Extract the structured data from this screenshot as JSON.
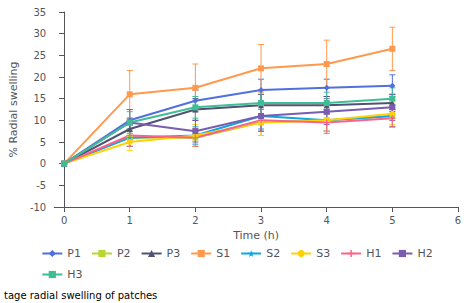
{
  "chart_data": {
    "type": "line",
    "xlabel": "Time (h)",
    "ylabel": "% Radial swelling",
    "annotations": [
      "tage radial swelling of patches"
    ],
    "x": [
      0,
      1,
      2,
      3,
      4,
      5
    ],
    "series": [
      {
        "name": "P1",
        "values": [
          0,
          10.0,
          14.5,
          17.0,
          17.5,
          18.0
        ],
        "yerr": [
          0,
          2.5,
          2.5,
          2.5,
          2.0,
          2.5
        ],
        "marker": "diamond"
      },
      {
        "name": "P2",
        "values": [
          0,
          6.0,
          6.0,
          9.5,
          10.0,
          11.0
        ],
        "yerr": [
          0,
          2.0,
          2.0,
          3.0,
          2.5,
          2.5
        ],
        "marker": "square"
      },
      {
        "name": "P3",
        "values": [
          0,
          8.0,
          12.5,
          13.5,
          13.5,
          14.0
        ],
        "yerr": [
          0,
          2.5,
          2.5,
          2.5,
          2.0,
          2.0
        ],
        "marker": "triangle"
      },
      {
        "name": "S1",
        "values": [
          0,
          16.0,
          17.5,
          22.0,
          23.0,
          26.5
        ],
        "yerr": [
          0,
          5.5,
          5.5,
          5.5,
          5.5,
          5.0
        ],
        "marker": "square"
      },
      {
        "name": "S2",
        "values": [
          0,
          6.0,
          6.5,
          11.0,
          10.0,
          11.0
        ],
        "yerr": [
          0,
          2.0,
          2.0,
          3.0,
          2.5,
          2.5
        ],
        "marker": "star"
      },
      {
        "name": "S3",
        "values": [
          0,
          5.0,
          6.5,
          9.5,
          10.0,
          11.5
        ],
        "yerr": [
          0,
          2.0,
          2.5,
          3.0,
          2.5,
          2.5
        ],
        "marker": "circle"
      },
      {
        "name": "H1",
        "values": [
          0,
          6.5,
          6.0,
          10.0,
          9.5,
          10.5
        ],
        "yerr": [
          0,
          2.5,
          2.0,
          2.5,
          2.5,
          2.0
        ],
        "marker": "plus"
      },
      {
        "name": "H2",
        "values": [
          0,
          9.5,
          7.5,
          11.0,
          12.0,
          13.0
        ],
        "yerr": [
          0,
          3.0,
          2.5,
          3.5,
          3.0,
          3.0
        ],
        "marker": "square"
      },
      {
        "name": "H3",
        "values": [
          0,
          9.5,
          13.0,
          14.0,
          14.0,
          15.0
        ],
        "yerr": [
          0,
          2.5,
          2.5,
          3.0,
          2.5,
          2.5
        ],
        "marker": "square"
      }
    ],
    "xlim": [
      -0.15,
      6
    ],
    "ylim": [
      -10,
      35
    ],
    "xticks": [
      0,
      1,
      2,
      3,
      4,
      5,
      6
    ],
    "yticks": [
      -10,
      -5,
      0,
      5,
      10,
      15,
      20,
      25,
      30,
      35
    ],
    "grid": false,
    "legend": "bottom"
  }
}
